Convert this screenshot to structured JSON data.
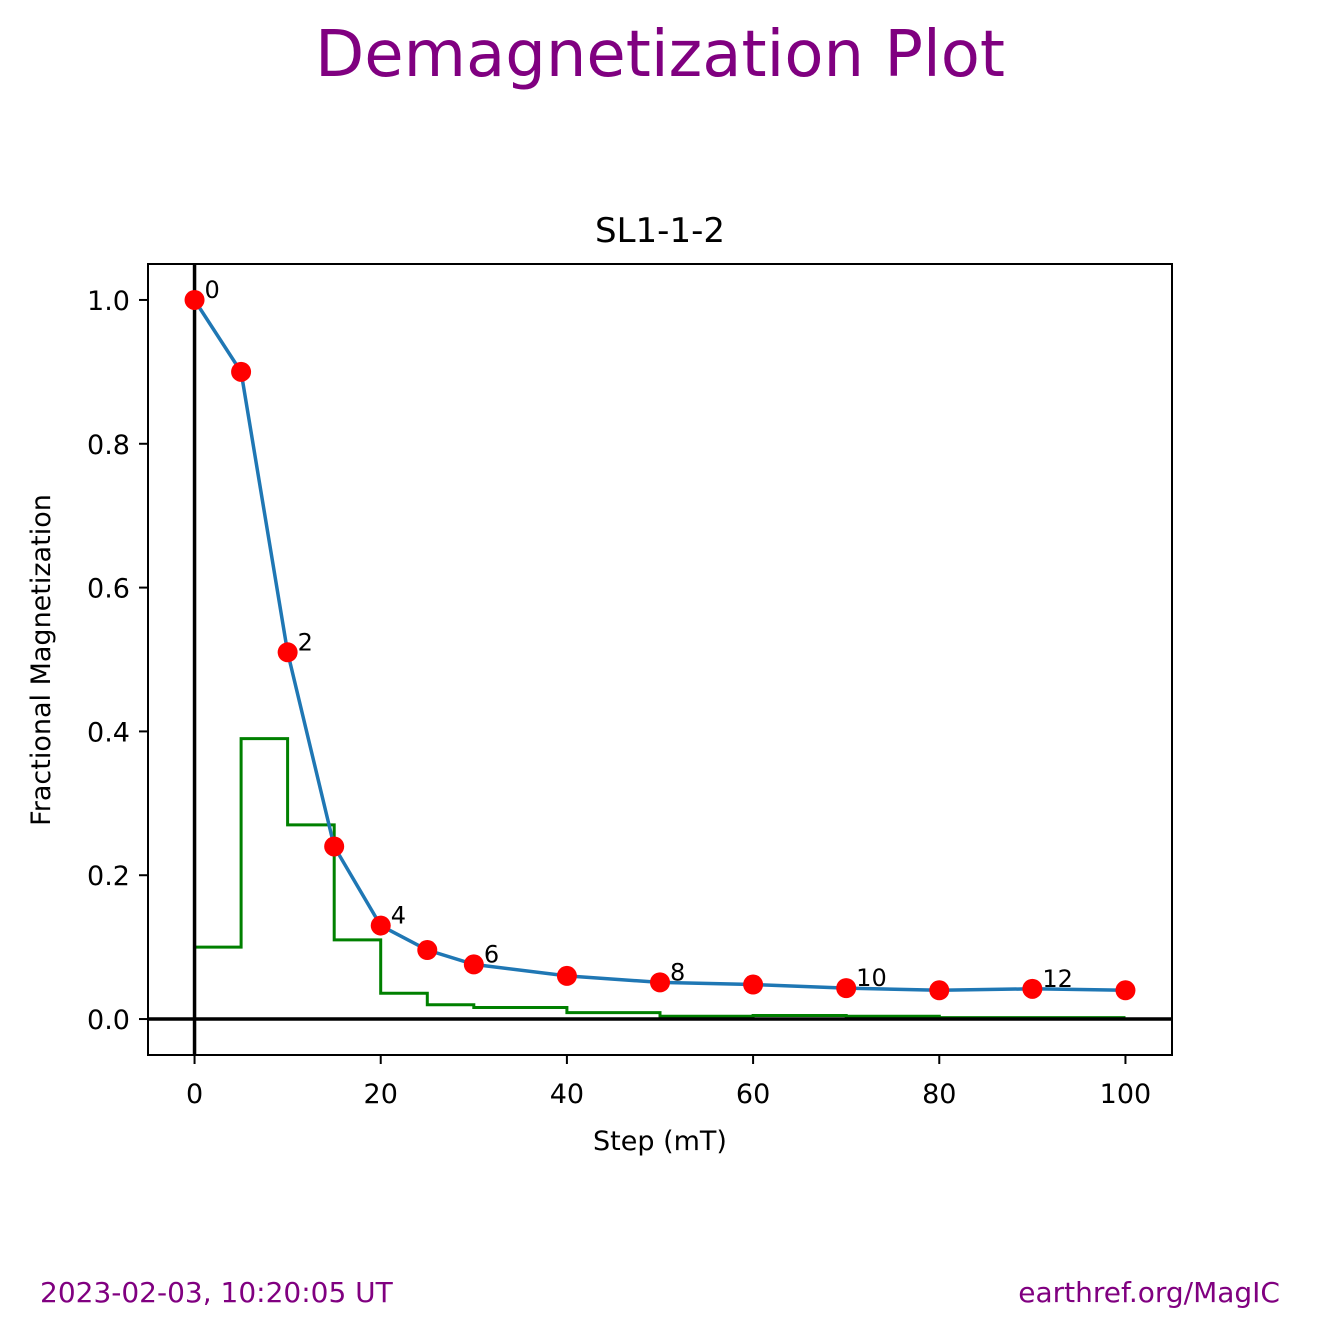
{
  "page": {
    "title": "Demagnetization Plot",
    "footer_left": "2023-02-03, 10:20:05 UT",
    "footer_right": "earthref.org/MagIC"
  },
  "chart_data": {
    "type": "line",
    "title": "SL1-1-2",
    "xlabel": "Step (mT)",
    "ylabel": "Fractional Magnetization",
    "xlim": [
      -5,
      105
    ],
    "ylim": [
      -0.05,
      1.05
    ],
    "x_ticks": [
      0,
      20,
      40,
      60,
      80,
      100
    ],
    "y_ticks": [
      0.0,
      0.2,
      0.4,
      0.6,
      0.8,
      1.0
    ],
    "grid": false,
    "series": [
      {
        "kind": "line-with-markers",
        "line_color": "#1f77b4",
        "marker_color": "#ff0000",
        "x": [
          0,
          5,
          10,
          15,
          20,
          25,
          30,
          40,
          50,
          60,
          70,
          80,
          90,
          100
        ],
        "y": [
          1.0,
          0.9,
          0.51,
          0.24,
          0.13,
          0.096,
          0.076,
          0.06,
          0.051,
          0.048,
          0.043,
          0.04,
          0.042,
          0.04
        ]
      },
      {
        "kind": "step",
        "color": "#008000",
        "x": [
          0,
          5,
          5,
          10,
          10,
          15,
          15,
          20,
          20,
          25,
          25,
          30,
          30,
          40,
          40,
          50,
          50,
          60,
          60,
          70,
          70,
          80,
          80,
          90,
          90,
          100
        ],
        "y": [
          0.1,
          0.1,
          0.39,
          0.39,
          0.27,
          0.27,
          0.11,
          0.11,
          0.036,
          0.036,
          0.02,
          0.02,
          0.016,
          0.016,
          0.009,
          0.009,
          0.004,
          0.004,
          0.005,
          0.005,
          0.004,
          0.004,
          0.002,
          0.002,
          0.002,
          0.002
        ]
      }
    ],
    "point_labels": [
      {
        "index": 0,
        "text": "0"
      },
      {
        "index": 2,
        "text": "2"
      },
      {
        "index": 4,
        "text": "4"
      },
      {
        "index": 6,
        "text": "6"
      },
      {
        "index": 8,
        "text": "8"
      },
      {
        "index": 10,
        "text": "10"
      },
      {
        "index": 12,
        "text": "12"
      }
    ],
    "reference_lines": {
      "x0": 0,
      "y0": 0,
      "color": "#000000"
    }
  }
}
